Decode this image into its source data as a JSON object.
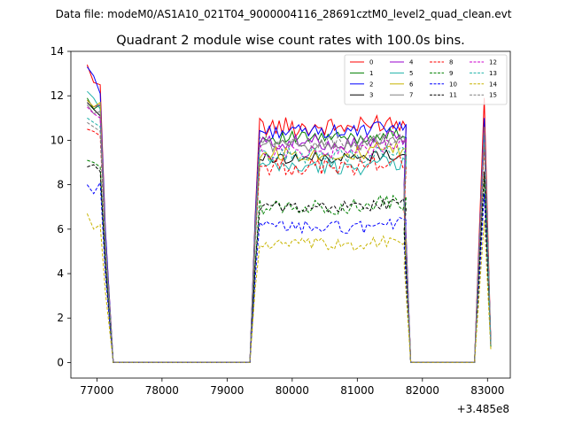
{
  "header": {
    "file_label": "Data file: modeM0/AS1A10_021T04_9000004116_28691cztM0_level2_quad_clean.evt"
  },
  "chart_data": {
    "type": "line",
    "title": "Quadrant 2 module wise count rates with 100.0s bins.",
    "xlabel": "",
    "ylabel": "",
    "x_offset_label": "+3.485e8",
    "xlim": [
      76600,
      83350
    ],
    "ylim": [
      -0.7,
      14.0
    ],
    "xticks": [
      77000,
      78000,
      79000,
      80000,
      81000,
      82000,
      83000
    ],
    "yticks": [
      0,
      2,
      4,
      6,
      8,
      10,
      12,
      14
    ],
    "x_anchor": [
      76850,
      76950,
      77050,
      77130,
      77250,
      79350,
      79430,
      79500,
      82650,
      82750,
      82850,
      82950,
      83050
    ],
    "segments": [
      {
        "name": "first_burst",
        "start": 76850,
        "step": 50,
        "count": 5
      },
      {
        "name": "gap_one",
        "start": 77250,
        "end": 79350,
        "value": 0
      },
      {
        "name": "plateau",
        "start": 79430,
        "step": 50,
        "count": 49
      },
      {
        "name": "gap_two",
        "start": 81820,
        "end": 82800,
        "value": 0
      },
      {
        "name": "last_burst",
        "start": 82850,
        "step": 50,
        "count": 4
      }
    ],
    "series": [
      {
        "name": "0",
        "color": "#ff0000",
        "style": "solid",
        "start": [
          13.4,
          12.6,
          12.5,
          6.0
        ],
        "level": 10.6,
        "jitter": 0.45,
        "end": [
          8.0,
          11.9,
          9.9,
          0.9
        ]
      },
      {
        "name": "1",
        "color": "#008000",
        "style": "solid",
        "start": [
          11.9,
          11.4,
          11.6,
          5.5
        ],
        "level": 10.1,
        "jitter": 0.3,
        "end": [
          7.5,
          10.9,
          9.1,
          0.8
        ]
      },
      {
        "name": "2",
        "color": "#0000ff",
        "style": "solid",
        "start": [
          13.3,
          12.9,
          12.1,
          6.0
        ],
        "level": 10.4,
        "jitter": 0.3,
        "end": [
          8.0,
          11.0,
          9.4,
          0.8
        ]
      },
      {
        "name": "3",
        "color": "#000000",
        "style": "solid",
        "start": [
          11.7,
          11.4,
          11.1,
          5.5
        ],
        "level": 9.2,
        "jitter": 0.25,
        "end": [
          7.0,
          10.2,
          8.5,
          0.8
        ]
      },
      {
        "name": "4",
        "color": "#9900cc",
        "style": "solid",
        "start": [
          11.8,
          11.5,
          11.6,
          5.5
        ],
        "level": 9.9,
        "jitter": 0.35,
        "end": [
          7.6,
          10.6,
          9.1,
          0.9
        ]
      },
      {
        "name": "5",
        "color": "#20b2aa",
        "style": "solid",
        "start": [
          12.2,
          11.9,
          11.4,
          5.6
        ],
        "level": 8.8,
        "jitter": 0.35,
        "end": [
          7.2,
          10.4,
          8.9,
          0.8
        ]
      },
      {
        "name": "6",
        "color": "#c8b400",
        "style": "solid",
        "start": [
          11.8,
          11.5,
          11.7,
          5.5
        ],
        "level": 9.4,
        "jitter": 0.35,
        "end": [
          7.5,
          10.5,
          9.0,
          0.8
        ]
      },
      {
        "name": "7",
        "color": "#808080",
        "style": "solid",
        "start": [
          11.6,
          11.2,
          11.3,
          5.4
        ],
        "level": 9.8,
        "jitter": 0.3,
        "end": [
          7.5,
          10.6,
          9.0,
          0.8
        ]
      },
      {
        "name": "8",
        "color": "#ff0000",
        "style": "dashed",
        "start": [
          10.5,
          10.4,
          10.2,
          5.0
        ],
        "level": 8.8,
        "jitter": 0.4,
        "end": [
          6.8,
          9.8,
          8.2,
          0.8
        ]
      },
      {
        "name": "9",
        "color": "#008000",
        "style": "dashed",
        "start": [
          9.1,
          9.0,
          8.8,
          4.5
        ],
        "level": 7.0,
        "jitter": 0.35,
        "end": [
          5.8,
          8.4,
          7.0,
          0.7
        ]
      },
      {
        "name": "10",
        "color": "#0000ff",
        "style": "dashed",
        "start": [
          8.0,
          7.6,
          8.1,
          4.0
        ],
        "level": 6.1,
        "jitter": 0.3,
        "end": [
          5.2,
          7.6,
          6.4,
          0.7
        ]
      },
      {
        "name": "11",
        "color": "#000000",
        "style": "dashed",
        "start": [
          8.8,
          8.9,
          8.6,
          4.4
        ],
        "level": 7.0,
        "jitter": 0.25,
        "end": [
          6.0,
          8.6,
          7.4,
          0.7
        ]
      },
      {
        "name": "12",
        "color": "#cc00cc",
        "style": "dashed",
        "start": [
          11.5,
          11.2,
          11.0,
          5.4
        ],
        "level": 9.5,
        "jitter": 0.35,
        "end": [
          7.4,
          10.4,
          8.8,
          0.8
        ]
      },
      {
        "name": "13",
        "color": "#20b2aa",
        "style": "dashed",
        "start": [
          11.0,
          10.8,
          10.6,
          5.2
        ],
        "level": 9.3,
        "jitter": 0.35,
        "end": [
          7.3,
          10.2,
          8.7,
          0.8
        ]
      },
      {
        "name": "14",
        "color": "#c8b400",
        "style": "dashed",
        "start": [
          6.7,
          6.0,
          6.2,
          3.2
        ],
        "level": 5.3,
        "jitter": 0.3,
        "end": [
          4.4,
          6.4,
          5.4,
          0.6
        ]
      },
      {
        "name": "15",
        "color": "#808080",
        "style": "dashed",
        "start": [
          10.8,
          10.6,
          10.4,
          5.1
        ],
        "level": 9.9,
        "jitter": 0.3,
        "end": [
          7.4,
          10.4,
          8.8,
          0.8
        ]
      }
    ],
    "legend": {
      "position": "top-right",
      "columns": 4
    }
  }
}
